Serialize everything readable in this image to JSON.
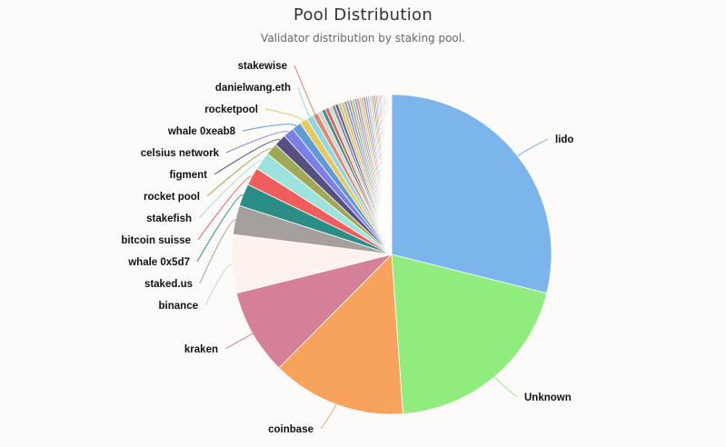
{
  "chart_data": {
    "type": "pie",
    "title": "Pool Distribution",
    "subtitle": "Validator distribution by staking pool.",
    "slices": [
      {
        "name": "lido",
        "value": 29.4,
        "color": "#7cb5ec",
        "labeled": true
      },
      {
        "name": "Unknown",
        "value": 20.3,
        "color": "#90ed7d",
        "labeled": true
      },
      {
        "name": "coinbase",
        "value": 13.8,
        "color": "#f7a35c",
        "labeled": true
      },
      {
        "name": "kraken",
        "value": 8.8,
        "color": "#d67f98",
        "labeled": true
      },
      {
        "name": "binance",
        "value": 6.0,
        "color": "#fef3ec",
        "labeled": true
      },
      {
        "name": "staked.us",
        "value": 3.0,
        "color": "#a6a09c",
        "labeled": true
      },
      {
        "name": "whale 0x5d7",
        "value": 2.3,
        "color": "#2a8d86",
        "labeled": true
      },
      {
        "name": "bitcoin suisse",
        "value": 1.85,
        "color": "#f15c5c",
        "labeled": true
      },
      {
        "name": "stakefish",
        "value": 1.85,
        "color": "#9de3dd",
        "labeled": true
      },
      {
        "name": "rocket pool",
        "value": 1.25,
        "color": "#a0a855",
        "labeled": true
      },
      {
        "name": "figment",
        "value": 1.25,
        "color": "#55507f",
        "labeled": true
      },
      {
        "name": "celsius network",
        "value": 1.1,
        "color": "#7b7fe8",
        "labeled": true
      },
      {
        "name": "whale 0xeab8",
        "value": 0.95,
        "color": "#5d9ad7",
        "labeled": true
      },
      {
        "name": "rocketpool",
        "value": 0.8,
        "color": "#e6c95a",
        "labeled": true
      },
      {
        "name": "danielwang.eth",
        "value": 0.7,
        "color": "#8fd7e8",
        "labeled": true
      },
      {
        "name": "stakewise",
        "value": 0.55,
        "color": "#e08a73",
        "labeled": true
      },
      {
        "name": "",
        "value": 0.45,
        "color": "#d4d4d4",
        "labeled": false
      },
      {
        "name": "",
        "value": 0.4,
        "color": "#4a8f80",
        "labeled": false
      },
      {
        "name": "",
        "value": 0.38,
        "color": "#e35f5f",
        "labeled": false
      },
      {
        "name": "",
        "value": 0.36,
        "color": "#b9e1da",
        "labeled": false
      },
      {
        "name": "",
        "value": 0.34,
        "color": "#8f8b7d",
        "labeled": false
      },
      {
        "name": "",
        "value": 0.33,
        "color": "#5a63a8",
        "labeled": false
      },
      {
        "name": "",
        "value": 0.32,
        "color": "#f0b56b",
        "labeled": false
      },
      {
        "name": "",
        "value": 0.3,
        "color": "#9fd57a",
        "labeled": false
      },
      {
        "name": "",
        "value": 0.29,
        "color": "#d07fa6",
        "labeled": false
      },
      {
        "name": "",
        "value": 0.28,
        "color": "#6bb0d9",
        "labeled": false
      },
      {
        "name": "",
        "value": 0.27,
        "color": "#c9a36a",
        "labeled": false
      },
      {
        "name": "",
        "value": 0.26,
        "color": "#7ad1b5",
        "labeled": false
      },
      {
        "name": "",
        "value": 0.25,
        "color": "#e67e9b",
        "labeled": false
      },
      {
        "name": "",
        "value": 0.24,
        "color": "#9a9fd9",
        "labeled": false
      },
      {
        "name": "",
        "value": 0.23,
        "color": "#c6d86a",
        "labeled": false
      },
      {
        "name": "",
        "value": 0.22,
        "color": "#f2a07a",
        "labeled": false
      },
      {
        "name": "",
        "value": 0.21,
        "color": "#77a9a4",
        "labeled": false
      },
      {
        "name": "",
        "value": 0.2,
        "color": "#b88ad6",
        "labeled": false
      },
      {
        "name": "",
        "value": 0.19,
        "color": "#8cc9e8",
        "labeled": false
      },
      {
        "name": "",
        "value": 0.18,
        "color": "#e8d27a",
        "labeled": false
      },
      {
        "name": "",
        "value": 0.17,
        "color": "#d9a5b3",
        "labeled": false
      },
      {
        "name": "",
        "value": 0.16,
        "color": "#6f9f6a",
        "labeled": false
      },
      {
        "name": "",
        "value": 0.15,
        "color": "#a77fd1",
        "labeled": false
      },
      {
        "name": "",
        "value": 0.14,
        "color": "#e9895e",
        "labeled": false
      },
      {
        "name": "",
        "value": 0.13,
        "color": "#74c2cf",
        "labeled": false
      },
      {
        "name": "",
        "value": 0.12,
        "color": "#b5c95d",
        "labeled": false
      },
      {
        "name": "",
        "value": 0.12,
        "color": "#d46f8a",
        "labeled": false
      },
      {
        "name": "",
        "value": 0.11,
        "color": "#9bb7e0",
        "labeled": false
      },
      {
        "name": "",
        "value": 0.11,
        "color": "#e2b36c",
        "labeled": false
      },
      {
        "name": "",
        "value": 0.1,
        "color": "#7cc49c",
        "labeled": false
      },
      {
        "name": "",
        "value": 0.1,
        "color": "#c38fcf",
        "labeled": false
      },
      {
        "name": "",
        "value": 0.1,
        "color": "#ef8f6f",
        "labeled": false
      },
      {
        "name": "",
        "value": 0.09,
        "color": "#8fb0c9",
        "labeled": false
      },
      {
        "name": "",
        "value": 0.09,
        "color": "#cfc46f",
        "labeled": false
      },
      {
        "name": "",
        "value": 0.09,
        "color": "#a1d1c5",
        "labeled": false
      },
      {
        "name": "",
        "value": 0.08,
        "color": "#e3a1b9",
        "labeled": false
      },
      {
        "name": "",
        "value": 0.08,
        "color": "#7f95d4",
        "labeled": false
      },
      {
        "name": "",
        "value": 0.08,
        "color": "#c9e18a",
        "labeled": false
      },
      {
        "name": "",
        "value": 0.08,
        "color": "#f5b08a",
        "labeled": false
      }
    ]
  }
}
